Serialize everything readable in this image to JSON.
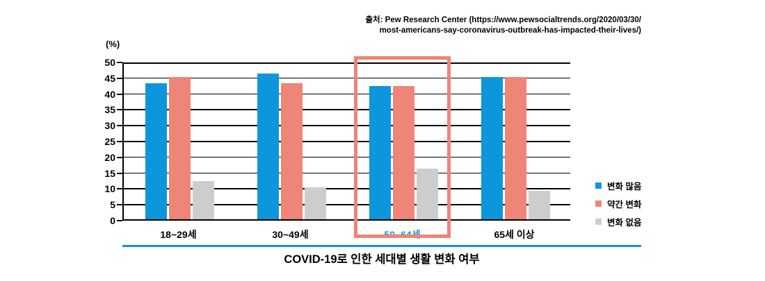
{
  "source": {
    "line1": "출처: Pew Research Center (https://www.pewsocialtrends.org/2020/03/30/",
    "line2": "most-americans-say-coronavirus-outbreak-has-impacted-their-lives/)"
  },
  "chart_data": {
    "type": "bar",
    "title": "COVID-19로 인한 세대별 생활 변화 여부",
    "unit_label": "(%)",
    "categories": [
      "18~29세",
      "30~49세",
      "50~64세",
      "65세 이상"
    ],
    "series": [
      {
        "name": "변화 많음",
        "color": "#0E96DC",
        "values": [
          43,
          46,
          42,
          45
        ]
      },
      {
        "name": "약간 변화",
        "color": "#EF8576",
        "values": [
          45,
          43,
          42,
          45
        ]
      },
      {
        "name": "변화 없음",
        "color": "#CDCDCD",
        "values": [
          12,
          10,
          16,
          9
        ]
      }
    ],
    "ylim": [
      0,
      50
    ],
    "ytick_step": 5,
    "grid": true,
    "legend_position": "right",
    "highlight": {
      "category": "50~64세",
      "category_index": 2,
      "box_color": "#EF8576",
      "label_color": "#0E96DC"
    }
  },
  "colors": {
    "accent_blue": "#0E96DC",
    "salmon": "#EF8576",
    "gray": "#CDCDCD",
    "axis_black": "#000000"
  }
}
